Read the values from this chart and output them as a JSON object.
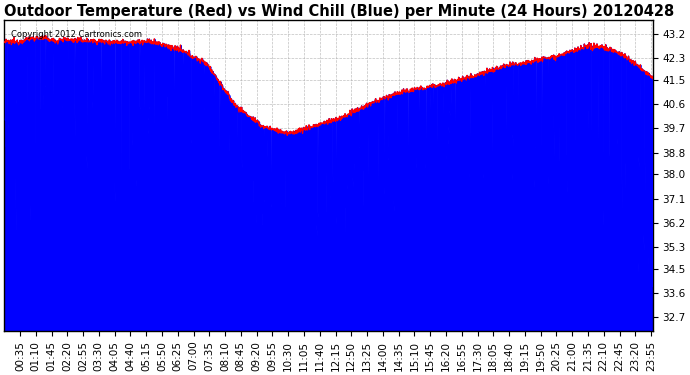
{
  "title": "Outdoor Temperature (Red) vs Wind Chill (Blue) per Minute (24 Hours) 20120428",
  "copyright_text": "Copyright 2012 Cartronics.com",
  "yticks": [
    32.7,
    33.6,
    34.5,
    35.3,
    36.2,
    37.1,
    38.0,
    38.8,
    39.7,
    40.6,
    41.5,
    42.3,
    43.2
  ],
  "ylim": [
    32.2,
    43.7
  ],
  "bg_color": "#ffffff",
  "plot_bg_color": "#ffffff",
  "grid_color": "#b0b0b0",
  "temp_color": "red",
  "wind_color": "blue",
  "title_fontsize": 10.5,
  "tick_fontsize": 7.5,
  "xtick_labels": [
    "00:35",
    "01:10",
    "01:45",
    "02:20",
    "02:55",
    "03:30",
    "04:05",
    "04:40",
    "05:15",
    "05:50",
    "06:25",
    "07:00",
    "07:35",
    "08:10",
    "08:45",
    "09:20",
    "09:55",
    "10:30",
    "11:05",
    "11:40",
    "12:15",
    "12:50",
    "13:25",
    "14:00",
    "14:35",
    "15:10",
    "15:45",
    "16:20",
    "16:55",
    "17:30",
    "18:05",
    "18:40",
    "19:15",
    "19:50",
    "20:25",
    "21:00",
    "21:35",
    "22:10",
    "22:45",
    "23:20",
    "23:55"
  ]
}
